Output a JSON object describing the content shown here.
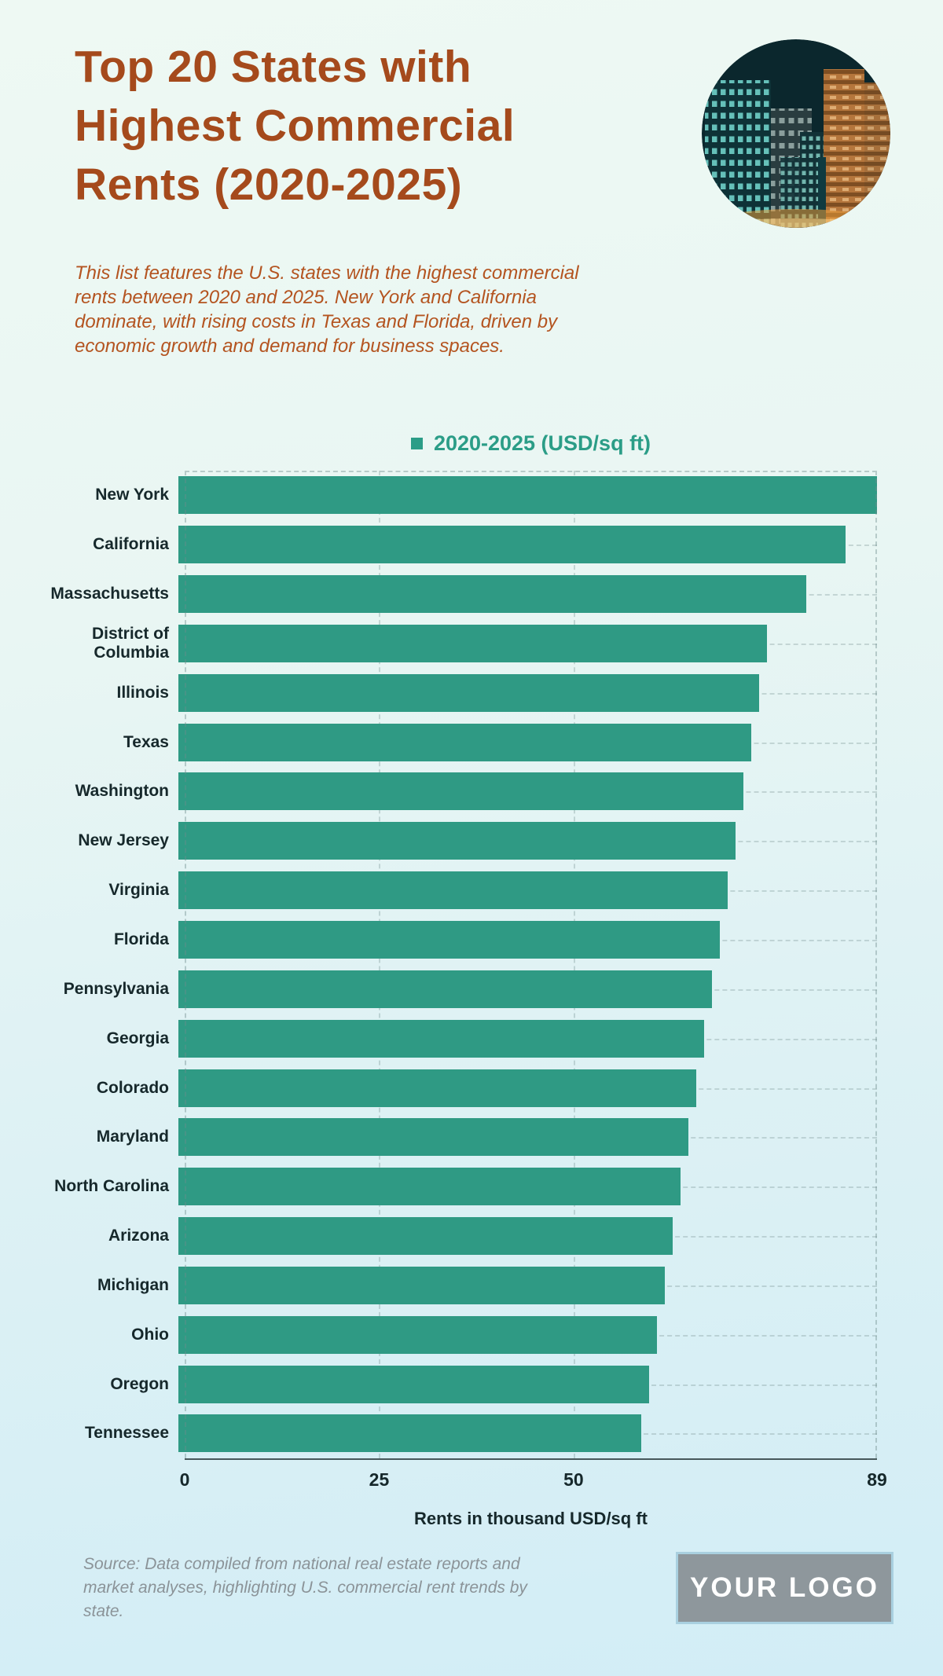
{
  "page": {
    "title": "Top 20 States with Highest Commercial Rents (2020-2025)",
    "subtitle": "This list features the U.S. states with the highest commercial rents between 2020 and 2025. New York and California dominate, with rising costs in Texas and Florida, driven by economic growth and demand for business spaces.",
    "source_note": "Source: Data compiled from national real estate reports and market analyses, highlighting U.S. commercial rent trends by state.",
    "logo_text": "YOUR LOGO"
  },
  "colors": {
    "title_orange": "#a54a1c",
    "subtitle_orange": "#b45420",
    "bar_teal": "#2f9a84",
    "legend_teal": "#2b9d87",
    "text_dark": "#16282b",
    "source_gray": "#8b9398",
    "logo_gray": "#8e979c",
    "background_top": "#eef9f3",
    "background_bottom": "#d2edf6"
  },
  "chart_data": {
    "type": "bar",
    "orientation": "horizontal",
    "title": "",
    "legend": "2020-2025 (USD/sq ft)",
    "legend_position": "top-center",
    "xlabel": "Rents in thousand USD/sq ft",
    "ylabel": "",
    "xlim": [
      0,
      89
    ],
    "x_ticks": [
      0,
      25,
      50,
      89
    ],
    "grid": "dashed vertical gridlines at ticks, dashed horizontal line per category",
    "categories": [
      "New York",
      "California",
      "Massachusetts",
      "District of Columbia",
      "Illinois",
      "Texas",
      "Washington",
      "New Jersey",
      "Virginia",
      "Florida",
      "Pennsylvania",
      "Georgia",
      "Colorado",
      "Maryland",
      "North Carolina",
      "Arizona",
      "Michigan",
      "Ohio",
      "Oregon",
      "Tennessee"
    ],
    "values": [
      89,
      85,
      80,
      75,
      74,
      73,
      72,
      71,
      70,
      69,
      68,
      67,
      66,
      65,
      64,
      63,
      62,
      61,
      60,
      59
    ]
  }
}
